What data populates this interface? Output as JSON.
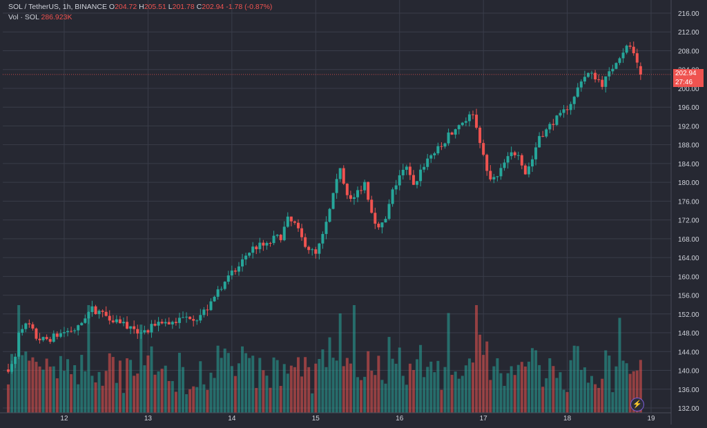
{
  "legend": {
    "symbol": "SOL / TetherUS, 1h, BINANCE",
    "open_label": "O",
    "open": "204.72",
    "high_label": "H",
    "high": "205.51",
    "low_label": "L",
    "low": "201.78",
    "close_label": "C",
    "close": "202.94",
    "change": "-1.78 (-0.87%)",
    "volume_label": "Vol · SOL",
    "volume": "286.923K"
  },
  "last_price": {
    "price": "202.94",
    "countdown": "27:46"
  },
  "colors": {
    "up": "#26a69a",
    "down": "#ef5350",
    "background": "#262832",
    "grid": "#3a3d4a",
    "text": "#d1d4dc"
  },
  "icons": {
    "badge": "lightning-icon"
  },
  "chart_data": {
    "type": "candlestick",
    "timeframe": "1h",
    "price_axis": {
      "range": [
        132,
        217
      ],
      "ticks": [
        "216.00",
        "212.00",
        "208.00",
        "204.00",
        "200.00",
        "196.00",
        "192.00",
        "188.00",
        "184.00",
        "180.00",
        "176.00",
        "172.00",
        "168.00",
        "164.00",
        "160.00",
        "156.00",
        "152.00",
        "148.00",
        "144.00",
        "140.00",
        "136.00",
        "132.00"
      ]
    },
    "time_axis": {
      "range_hours": [
        0,
        196
      ],
      "ticks": [
        {
          "label": "12",
          "hour": 16
        },
        {
          "label": "13",
          "hour": 40
        },
        {
          "label": "14",
          "hour": 64
        },
        {
          "label": "15",
          "hour": 88
        },
        {
          "label": "16",
          "hour": 112
        },
        {
          "label": "17",
          "hour": 136
        },
        {
          "label": "18",
          "hour": 160
        },
        {
          "label": "19",
          "hour": 184
        }
      ]
    },
    "close_path": [
      [
        0,
        140.5
      ],
      [
        1,
        141
      ],
      [
        2,
        142.5
      ],
      [
        3,
        147.5
      ],
      [
        4,
        149.5
      ],
      [
        6,
        149.5
      ],
      [
        8,
        147
      ],
      [
        10,
        146.5
      ],
      [
        12,
        146.8
      ],
      [
        14,
        147.5
      ],
      [
        16,
        148.2
      ],
      [
        18,
        148.5
      ],
      [
        20,
        149
      ],
      [
        22,
        151.5
      ],
      [
        24,
        153
      ],
      [
        26,
        152.5
      ],
      [
        28,
        151.8
      ],
      [
        30,
        151
      ],
      [
        32,
        150.5
      ],
      [
        34,
        149.5
      ],
      [
        36,
        148
      ],
      [
        38,
        148.5
      ],
      [
        40,
        148.2
      ],
      [
        42,
        150
      ],
      [
        44,
        150.5
      ],
      [
        46,
        150
      ],
      [
        48,
        150.5
      ],
      [
        50,
        151
      ],
      [
        52,
        151.5
      ],
      [
        54,
        151.2
      ],
      [
        56,
        152.5
      ],
      [
        58,
        154
      ],
      [
        60,
        157
      ],
      [
        62,
        159
      ],
      [
        64,
        160.5
      ],
      [
        66,
        162
      ],
      [
        68,
        164.5
      ],
      [
        70,
        166
      ],
      [
        72,
        166.5
      ],
      [
        74,
        166.5
      ],
      [
        76,
        168
      ],
      [
        78,
        168.5
      ],
      [
        80,
        172
      ],
      [
        82,
        171
      ],
      [
        84,
        168
      ],
      [
        86,
        166
      ],
      [
        88,
        164.5
      ],
      [
        90,
        168.5
      ],
      [
        92,
        174
      ],
      [
        94,
        180
      ],
      [
        95,
        183.5
      ],
      [
        96,
        180
      ],
      [
        98,
        176
      ],
      [
        100,
        178
      ],
      [
        102,
        180
      ],
      [
        104,
        174
      ],
      [
        106,
        170
      ],
      [
        108,
        172
      ],
      [
        110,
        178
      ],
      [
        112,
        181.5
      ],
      [
        114,
        183
      ],
      [
        116,
        179
      ],
      [
        118,
        182.5
      ],
      [
        120,
        185
      ],
      [
        122,
        186.5
      ],
      [
        124,
        187.5
      ],
      [
        126,
        190
      ],
      [
        128,
        191.5
      ],
      [
        130,
        193
      ],
      [
        132,
        194
      ],
      [
        133,
        195
      ],
      [
        134,
        191.5
      ],
      [
        135,
        189
      ],
      [
        137,
        182
      ],
      [
        138,
        180.5
      ],
      [
        140,
        181
      ],
      [
        142,
        184
      ],
      [
        144,
        186
      ],
      [
        146,
        186.5
      ],
      [
        148,
        182
      ],
      [
        150,
        185
      ],
      [
        152,
        190
      ],
      [
        154,
        191
      ],
      [
        156,
        193
      ],
      [
        158,
        194
      ],
      [
        160,
        196
      ],
      [
        162,
        198
      ],
      [
        164,
        202
      ],
      [
        166,
        203
      ],
      [
        168,
        202.5
      ],
      [
        170,
        201
      ],
      [
        172,
        203
      ],
      [
        174,
        206
      ],
      [
        176,
        208
      ],
      [
        178,
        209
      ],
      [
        180,
        204.72
      ],
      [
        181,
        202.94
      ]
    ],
    "volume_scale_max": 1000
  }
}
